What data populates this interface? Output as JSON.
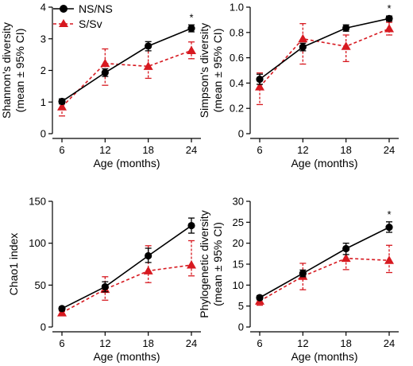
{
  "legend": {
    "entries": [
      {
        "label": "NS/NS",
        "color": "#000000",
        "marker": "circle",
        "line": "solid"
      },
      {
        "label": "S/Sv",
        "color": "#d71920",
        "marker": "triangle",
        "line": "dashed"
      }
    ]
  },
  "chart_data": [
    {
      "type": "line",
      "title": "",
      "xlabel": "Age (months)",
      "ylabel": [
        "Shannon's diversity",
        "(mean ± 95% CI)"
      ],
      "x": [
        6,
        12,
        18,
        24
      ],
      "xticks": [
        "6",
        "12",
        "18",
        "24"
      ],
      "ylim": [
        0,
        4
      ],
      "yticks": [
        "0",
        "1",
        "2",
        "3",
        "4"
      ],
      "annotation": {
        "text": "*",
        "x": 24
      },
      "series": [
        {
          "name": "NS/NS",
          "values": [
            1.02,
            1.93,
            2.77,
            3.33
          ],
          "lower": [
            0.94,
            1.81,
            2.62,
            3.22
          ],
          "upper": [
            1.1,
            2.05,
            2.91,
            3.44
          ]
        },
        {
          "name": "S/Sv",
          "values": [
            0.85,
            2.22,
            2.13,
            2.63
          ],
          "lower": [
            0.56,
            1.53,
            1.75,
            2.37
          ],
          "upper": [
            1.08,
            2.68,
            2.73,
            2.9
          ]
        }
      ]
    },
    {
      "type": "line",
      "title": "",
      "xlabel": "Age (months)",
      "ylabel": [
        "Simpson's diversity",
        "(mean ± 95% CI)"
      ],
      "x": [
        6,
        12,
        18,
        24
      ],
      "xticks": [
        "6",
        "12",
        "18",
        "24"
      ],
      "ylim": [
        0,
        1.0
      ],
      "yticks": [
        "0",
        "0.2",
        "0.4",
        "0.6",
        "0.8",
        "1.0"
      ],
      "annotation": {
        "text": "*",
        "x": 24
      },
      "series": [
        {
          "name": "NS/NS",
          "values": [
            0.43,
            0.685,
            0.835,
            0.91
          ],
          "lower": [
            0.39,
            0.655,
            0.81,
            0.89
          ],
          "upper": [
            0.47,
            0.715,
            0.86,
            0.93
          ]
        },
        {
          "name": "S/Sv",
          "values": [
            0.37,
            0.75,
            0.69,
            0.83
          ],
          "lower": [
            0.23,
            0.55,
            0.57,
            0.78
          ],
          "upper": [
            0.48,
            0.87,
            0.78,
            0.88
          ]
        }
      ]
    },
    {
      "type": "line",
      "title": "",
      "xlabel": "Age (months)",
      "ylabel": [
        "Chao1 index"
      ],
      "x": [
        6,
        12,
        18,
        24
      ],
      "xticks": [
        "6",
        "12",
        "18",
        "24"
      ],
      "ylim": [
        0,
        150
      ],
      "yticks": [
        "0",
        "50",
        "100",
        "150"
      ],
      "annotation": null,
      "series": [
        {
          "name": "NS/NS",
          "values": [
            22,
            48,
            85,
            121
          ],
          "lower": [
            20,
            42,
            77,
            112
          ],
          "upper": [
            24,
            54,
            94,
            130
          ]
        },
        {
          "name": "S/Sv",
          "values": [
            17,
            45,
            67,
            74
          ],
          "lower": [
            15,
            32,
            53,
            61
          ],
          "upper": [
            19,
            60,
            97,
            103
          ]
        }
      ]
    },
    {
      "type": "line",
      "title": "",
      "xlabel": "Age (months)",
      "ylabel": [
        "Phylogenetic diversity",
        "(mean ± 95% CI)"
      ],
      "x": [
        6,
        12,
        18,
        24
      ],
      "xticks": [
        "6",
        "12",
        "18",
        "24"
      ],
      "ylim": [
        0,
        30
      ],
      "yticks": [
        "0",
        "5",
        "10",
        "15",
        "20",
        "25",
        "30"
      ],
      "annotation": {
        "text": "*",
        "x": 24
      },
      "series": [
        {
          "name": "NS/NS",
          "values": [
            7.0,
            12.8,
            18.7,
            23.8
          ],
          "lower": [
            6.5,
            12.0,
            17.3,
            22.6
          ],
          "upper": [
            7.5,
            13.6,
            20.0,
            25.1
          ]
        },
        {
          "name": "S/Sv",
          "values": [
            6.2,
            12.1,
            16.4,
            15.9
          ],
          "lower": [
            5.2,
            8.9,
            13.7,
            13.0
          ],
          "upper": [
            7.2,
            15.2,
            18.3,
            19.5
          ]
        }
      ]
    }
  ]
}
